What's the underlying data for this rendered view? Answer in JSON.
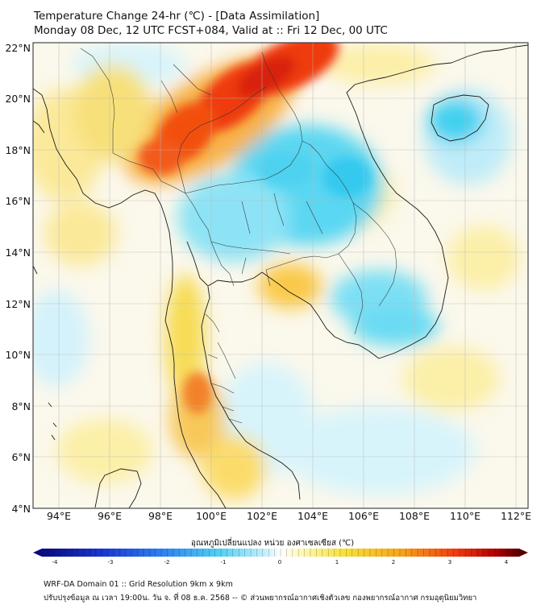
{
  "header": {
    "title_line1": "Temperature Change 24-hr (℃) - [Data Assimilation]",
    "title_line2": "Monday 08 Dec, 12 UTC FCST+084, Valid at :: Fri 12 Dec, 00 UTC"
  },
  "map": {
    "lat_labels": [
      "22°N",
      "20°N",
      "18°N",
      "16°N",
      "14°N",
      "12°N",
      "10°N",
      "8°N",
      "6°N",
      "4°N"
    ],
    "lon_labels": [
      "94°E",
      "96°E",
      "98°E",
      "100°E",
      "102°E",
      "104°E",
      "106°E",
      "108°E",
      "110°E",
      "112°E"
    ],
    "lat_range": [
      4,
      22.3
    ],
    "lon_range": [
      93,
      112.5
    ],
    "anomalies": [
      {
        "region": "Northern Myanmar / Northern Thailand",
        "sign": "warm",
        "peak_c": 3.0
      },
      {
        "region": "Northeast Thailand / Laos",
        "sign": "cool",
        "peak_c": -1.2
      },
      {
        "region": "Hainan",
        "sign": "cool",
        "peak_c": -1.0
      },
      {
        "region": "Gulf of Thailand (east)",
        "sign": "warm",
        "peak_c": 1.5
      },
      {
        "region": "Andaman coast / Southern Thailand",
        "sign": "warm",
        "peak_c": 1.8
      }
    ]
  },
  "colorbar": {
    "title": "อุณหภูมิเปลี่ยนแปลง หน่วย องศาเซลเซียส (℃)",
    "ticks": [
      "-4",
      "-3",
      "-2",
      "-1",
      "0",
      "1",
      "2",
      "3",
      "4"
    ],
    "range": [
      -4,
      4
    ],
    "colors": [
      "#0a0a80",
      "#1a3ad0",
      "#2f7ff0",
      "#4fd0f5",
      "#c8f0fb",
      "#ffffff",
      "#fffbc8",
      "#f7e23a",
      "#f7a51a",
      "#ef3a10",
      "#b00000",
      "#5a0000"
    ]
  },
  "footer": {
    "line1": "WRF-DA Domain 01 :: Grid Resolution 9km x 9km",
    "line2": "ปรับปรุงข้อมูล ณ เวลา 19:00น. วัน จ. ที่ 08 ธ.ค. 2568 -- © ส่วนพยากรณ์อากาศเชิงตัวเลข กองพยากรณ์อากาศ กรมอุตุนิยมวิทยา"
  }
}
